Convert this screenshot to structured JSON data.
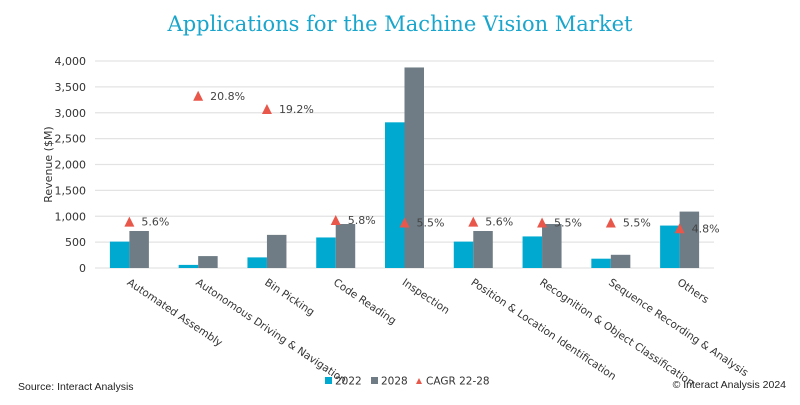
{
  "chart_data": {
    "type": "bar",
    "title": "Applications for the Machine Vision Market",
    "ylabel": "Revenue ($M)",
    "ylim": [
      0,
      4000
    ],
    "yticks": [
      0,
      500,
      1000,
      1500,
      2000,
      2500,
      3000,
      3500,
      4000
    ],
    "ytick_labels": [
      "0",
      "500",
      "1,000",
      "1,500",
      "2,000",
      "2,500",
      "3,000",
      "3,500",
      "4,000"
    ],
    "secondary_ylim_percent": [
      0,
      25
    ],
    "grid": true,
    "legend_placement": "bottom",
    "categories": [
      "Automated Assembly",
      "Autonomous Driving & Navigation",
      "Bin Picking",
      "Code Reading",
      "Inspection",
      "Position & Location Identification",
      "Recognition & Object Classification",
      "Sequence Recording & Analysis",
      "Others"
    ],
    "series": [
      {
        "name": "2022",
        "type": "bar",
        "color": "#00a9d0",
        "values": [
          510,
          60,
          205,
          590,
          2815,
          510,
          610,
          180,
          820
        ]
      },
      {
        "name": "2028",
        "type": "bar",
        "color": "#6f7c85",
        "values": [
          715,
          230,
          640,
          850,
          3875,
          715,
          850,
          255,
          1090
        ]
      },
      {
        "name": "CAGR 22-28",
        "type": "marker",
        "marker": "triangle",
        "color": "#e8574a",
        "values": [
          5.6,
          20.8,
          19.2,
          5.8,
          5.5,
          5.6,
          5.5,
          5.5,
          4.8
        ],
        "labels": [
          "5.6%",
          "20.8%",
          "19.2%",
          "5.8%",
          "5.5%",
          "5.6%",
          "5.5%",
          "5.5%",
          "4.8%"
        ]
      }
    ]
  },
  "footer": {
    "source": "Source: Interact Analysis",
    "copyright": "© Interact Analysis 2024"
  }
}
